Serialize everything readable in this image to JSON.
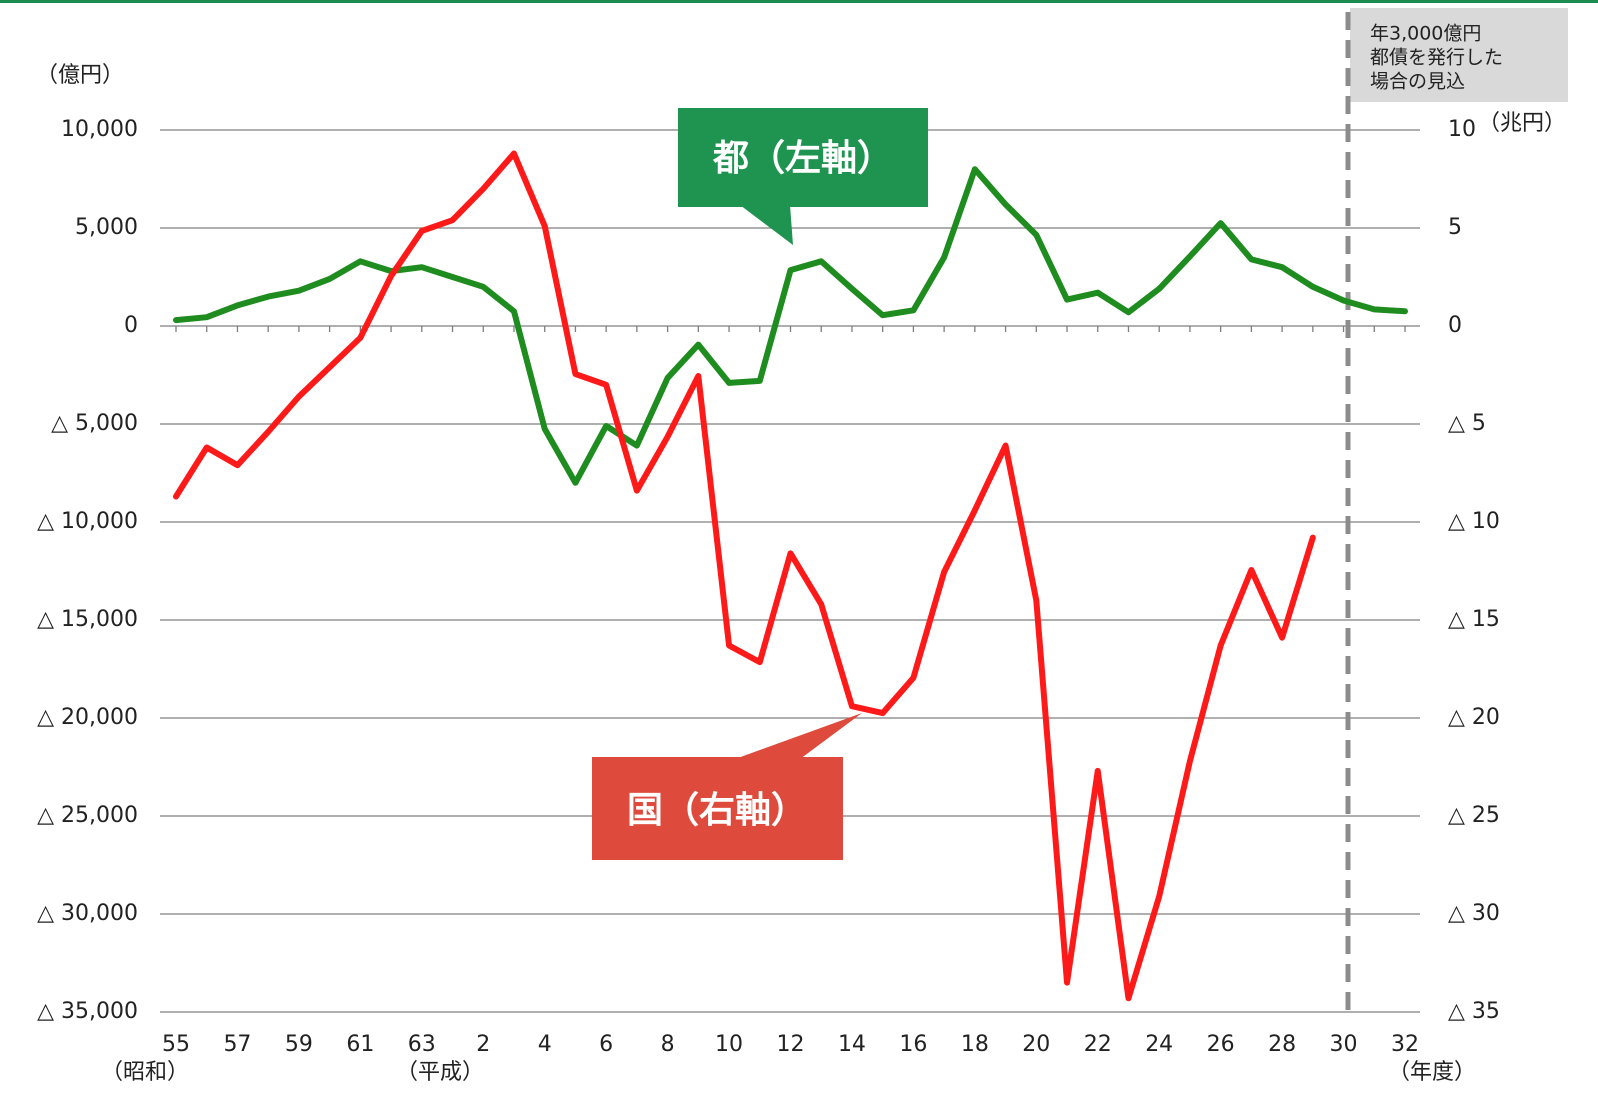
{
  "chart_data": {
    "type": "line",
    "y_unit_label": "（億円）",
    "y2_unit_label": "（兆円）",
    "x_unit_label": "（年度）",
    "era_labels": [
      "（昭和）",
      "（平成）"
    ],
    "annotation": [
      "年3,000億円",
      "都債を発行した",
      "場合の見込"
    ],
    "categories": [
      "55",
      null,
      "57",
      null,
      "59",
      null,
      "61",
      null,
      "63",
      null,
      "2",
      null,
      "4",
      null,
      "6",
      null,
      "8",
      null,
      "10",
      null,
      "12",
      null,
      "14",
      null,
      "16",
      null,
      "18",
      null,
      "20",
      null,
      "22",
      null,
      "24",
      null,
      "26",
      null,
      "28",
      null,
      "30",
      null,
      "32"
    ],
    "ylim": [
      -35000,
      10000
    ],
    "yticks": [
      {
        "value": 10000,
        "label": "10,000"
      },
      {
        "value": 5000,
        "label": "5,000"
      },
      0,
      {
        "value": -5000,
        "label": "△ 5,000"
      },
      {
        "value": -10000,
        "label": "△ 10,000"
      },
      {
        "value": -15000,
        "label": "△ 15,000"
      },
      {
        "value": -20000,
        "label": "△ 20,000"
      },
      {
        "value": -25000,
        "label": "△ 25,000"
      },
      {
        "value": -30000,
        "label": "△ 30,000"
      },
      {
        "value": -35000,
        "label": "△ 35,000"
      }
    ],
    "y2lim": [
      -35,
      10
    ],
    "y2ticks": [
      10,
      5,
      0,
      {
        "value": -5,
        "label": "△ 5"
      },
      {
        "value": -10,
        "label": "△ 10"
      },
      {
        "value": -15,
        "label": "△ 15"
      },
      {
        "value": -20,
        "label": "△ 20"
      },
      {
        "value": -25,
        "label": "△ 25"
      },
      {
        "value": -30,
        "label": "△ 30"
      },
      {
        "value": -35,
        "label": "△ 35"
      }
    ],
    "grid": true,
    "series": [
      {
        "name": "都（左軸）",
        "color": "#1e8c1e",
        "label_color": "#1e9450",
        "axis": "y",
        "values": [
          300,
          450,
          1050,
          1500,
          1800,
          2400,
          3300,
          2800,
          3000,
          2500,
          2000,
          750,
          -5250,
          -8000,
          -5100,
          -6100,
          -2650,
          -950,
          -2900,
          -2800,
          2850,
          3300,
          1900,
          550,
          800,
          3500,
          8000,
          6200,
          4650,
          1350,
          1700,
          700,
          1900,
          3550,
          5250,
          3400,
          3000,
          2000,
          1300,
          850,
          750
        ]
      },
      {
        "name": "国（右軸）",
        "color": "#ff1a1a",
        "label_color": "#de4a3c",
        "axis": "y2",
        "values": [
          -8.7,
          -6.2,
          -7.1,
          -5.4,
          -3.6,
          -2.1,
          -0.6,
          2.55,
          4.85,
          5.4,
          7.0,
          8.8,
          5.1,
          -2.45,
          -3.0,
          -8.4,
          -5.65,
          -2.55,
          -16.3,
          -17.15,
          -11.6,
          -14.2,
          -19.4,
          -19.75,
          -17.95,
          -12.55,
          -9.4,
          -6.1,
          -14.0,
          -33.5,
          -22.7,
          -34.3,
          -29.1,
          -22.2,
          -16.3,
          -12.45,
          -15.9,
          -10.8,
          null,
          null,
          null
        ]
      }
    ]
  }
}
